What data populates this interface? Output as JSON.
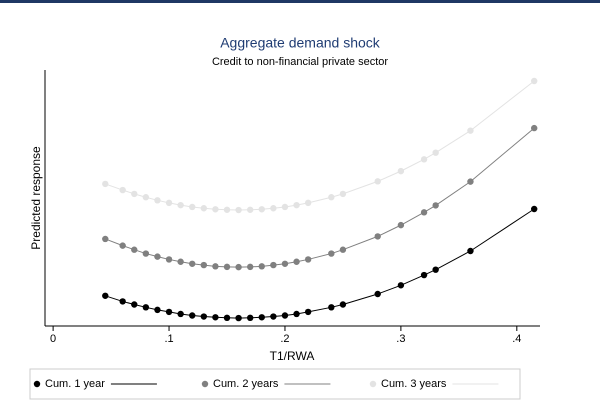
{
  "chart_data": {
    "type": "line",
    "title": "Aggregate demand shock",
    "subtitle": "Credit to non-financial private sector",
    "xlabel": "T1/RWA",
    "ylabel": "Predicted response",
    "markers": true,
    "x": [
      0.045,
      0.06,
      0.07,
      0.08,
      0.09,
      0.1,
      0.11,
      0.12,
      0.13,
      0.14,
      0.15,
      0.16,
      0.17,
      0.18,
      0.19,
      0.2,
      0.21,
      0.22,
      0.24,
      0.25,
      0.28,
      0.3,
      0.32,
      0.33,
      0.36,
      0.415
    ],
    "series": [
      {
        "name": "Cum. 1 year",
        "color": "#000000",
        "values": [
          11.8,
          9.6,
          8.4,
          7.3,
          6.3,
          5.5,
          4.7,
          4.1,
          3.7,
          3.4,
          3.2,
          3.1,
          3.2,
          3.4,
          3.7,
          4.1,
          4.7,
          5.5,
          7.3,
          8.4,
          12.5,
          15.9,
          19.9,
          22.0,
          29.3,
          45.7
        ]
      },
      {
        "name": "Cum. 2 years",
        "color": "#808080",
        "values": [
          34.0,
          31.4,
          29.8,
          28.3,
          27.1,
          26.0,
          25.1,
          24.3,
          23.8,
          23.3,
          23.1,
          23.0,
          23.1,
          23.3,
          23.8,
          24.3,
          25.1,
          26.0,
          28.3,
          29.8,
          35.0,
          39.4,
          44.4,
          47.1,
          56.4,
          77.3
        ]
      },
      {
        "name": "Cum. 3 years",
        "color": "#e3e3e3",
        "values": [
          55.5,
          53.1,
          51.6,
          50.3,
          49.1,
          48.1,
          47.2,
          46.5,
          46.0,
          45.6,
          45.4,
          45.3,
          45.4,
          45.6,
          46.0,
          46.5,
          47.2,
          48.1,
          50.3,
          51.6,
          56.5,
          60.5,
          65.1,
          67.7,
          76.3,
          95.7
        ]
      }
    ],
    "xlim": [
      -0.007,
      0.42
    ],
    "xticks": [
      0,
      {
        "value": 0.1,
        "label": ".1"
      },
      {
        "value": 0.2,
        "label": ".2"
      },
      {
        "value": 0.3,
        "label": ".3"
      },
      {
        "value": 0.4,
        "label": ".4"
      }
    ],
    "ylim": [
      0,
      100
    ],
    "legend": "bottom"
  }
}
